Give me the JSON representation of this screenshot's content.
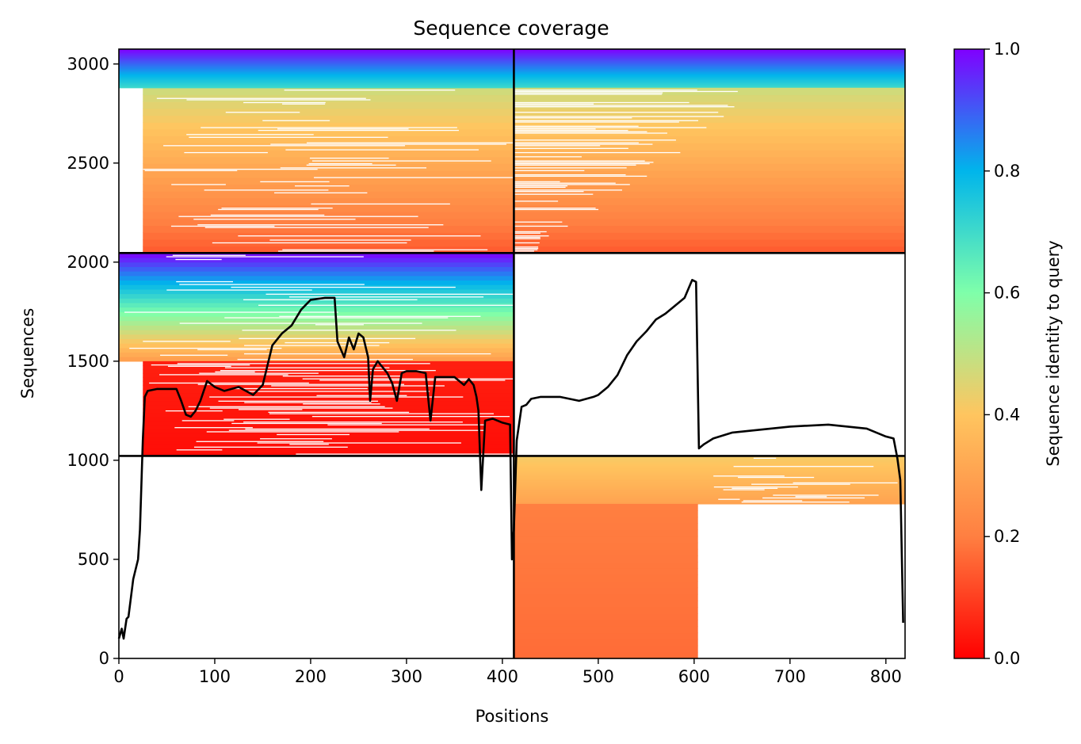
{
  "chart_data": {
    "type": "heatmap",
    "title": "Sequence coverage",
    "xlabel": "Positions",
    "ylabel": "Sequences",
    "xlim": [
      0,
      820
    ],
    "ylim": [
      0,
      3075
    ],
    "x_ticks": [
      0,
      100,
      200,
      300,
      400,
      500,
      600,
      700,
      800
    ],
    "y_ticks": [
      0,
      500,
      1000,
      1500,
      2000,
      2500,
      3000
    ],
    "colorbar": {
      "label": "Sequence identity to query",
      "range": [
        0.0,
        1.0
      ],
      "ticks": [
        "0.0",
        "0.2",
        "0.4",
        "0.6",
        "0.8",
        "1.0"
      ],
      "colormap": "rainbow",
      "stops": [
        "#ff0000",
        "#ff7f41",
        "#ffc55f",
        "#7fffaa",
        "#00b5eb",
        "#8000ff"
      ]
    },
    "dividers": {
      "x": 412,
      "y": [
        1022,
        2046
      ]
    },
    "blocks": [
      {
        "x": [
          25,
          412
        ],
        "y": [
          2046,
          2880
        ],
        "identity_top": 0.48,
        "identity_bottom": 0.14
      },
      {
        "x": [
          0,
          412
        ],
        "y": [
          2880,
          3075
        ],
        "identity_top": 1.0,
        "identity_bottom": 0.7
      },
      {
        "x": [
          412,
          820
        ],
        "y": [
          2880,
          3075
        ],
        "identity_top": 1.0,
        "identity_bottom": 0.7
      },
      {
        "x": [
          412,
          820
        ],
        "y": [
          2046,
          2880
        ],
        "identity_top": 0.48,
        "identity_bottom": 0.14
      },
      {
        "x": [
          0,
          412
        ],
        "y": [
          1500,
          2046
        ],
        "identity_top": 1.0,
        "identity_bottom": 0.28
      },
      {
        "x": [
          25,
          412
        ],
        "y": [
          1022,
          1500
        ],
        "identity_top": 0.05,
        "identity_bottom": 0.02
      },
      {
        "x": [
          412,
          820
        ],
        "y": [
          780,
          1022
        ],
        "identity_top": 0.42,
        "identity_bottom": 0.3
      },
      {
        "x": [
          412,
          604
        ],
        "y": [
          0,
          780
        ],
        "identity_top": 0.2,
        "identity_bottom": 0.17
      }
    ],
    "coverage": {
      "x": [
        0,
        3,
        5,
        8,
        10,
        15,
        20,
        22,
        25,
        27,
        30,
        40,
        50,
        60,
        65,
        70,
        75,
        80,
        85,
        92,
        100,
        110,
        125,
        140,
        150,
        160,
        170,
        180,
        190,
        200,
        215,
        225,
        228,
        235,
        240,
        245,
        250,
        255,
        260,
        262,
        265,
        270,
        275,
        280,
        285,
        290,
        295,
        300,
        310,
        320,
        325,
        330,
        340,
        350,
        360,
        365,
        370,
        373,
        375,
        378,
        382,
        390,
        400,
        408,
        410,
        412,
        415,
        420,
        425,
        430,
        440,
        460,
        480,
        495,
        500,
        510,
        520,
        530,
        540,
        550,
        560,
        570,
        580,
        590,
        598,
        602,
        605,
        610,
        620,
        640,
        660,
        700,
        740,
        780,
        800,
        808,
        812,
        815,
        818
      ],
      "y": [
        100,
        150,
        100,
        200,
        210,
        400,
        500,
        650,
        1100,
        1320,
        1350,
        1360,
        1360,
        1360,
        1300,
        1230,
        1220,
        1250,
        1300,
        1400,
        1370,
        1350,
        1370,
        1330,
        1380,
        1580,
        1640,
        1680,
        1760,
        1810,
        1820,
        1820,
        1600,
        1520,
        1620,
        1560,
        1640,
        1620,
        1520,
        1300,
        1460,
        1500,
        1470,
        1440,
        1390,
        1300,
        1440,
        1450,
        1450,
        1440,
        1200,
        1420,
        1420,
        1420,
        1380,
        1410,
        1380,
        1320,
        1250,
        850,
        1200,
        1210,
        1190,
        1180,
        500,
        650,
        1100,
        1270,
        1280,
        1310,
        1320,
        1320,
        1300,
        1320,
        1330,
        1370,
        1430,
        1530,
        1600,
        1650,
        1710,
        1740,
        1780,
        1820,
        1910,
        1900,
        1060,
        1080,
        1110,
        1140,
        1150,
        1170,
        1180,
        1160,
        1120,
        1110,
        1010,
        900,
        180
      ]
    }
  }
}
